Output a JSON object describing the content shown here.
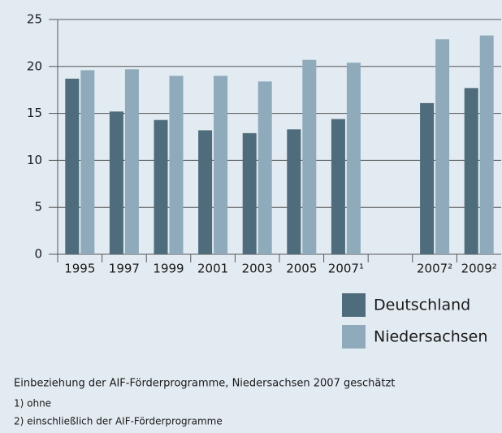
{
  "chart_data": {
    "type": "bar",
    "categories": [
      "1995",
      "1997",
      "1999",
      "2001",
      "2003",
      "2005",
      "2007¹",
      null,
      "2007²",
      "2009²"
    ],
    "series": [
      {
        "name": "Deutschland",
        "color": "#4e6c7b",
        "values": [
          18.7,
          15.2,
          14.3,
          13.2,
          12.9,
          13.3,
          14.4,
          null,
          16.1,
          17.7
        ]
      },
      {
        "name": "Niedersachsen",
        "color": "#8eaabb",
        "values": [
          19.6,
          19.7,
          19.0,
          19.0,
          18.4,
          20.7,
          20.4,
          null,
          22.9,
          23.3
        ]
      }
    ],
    "ylim": [
      0,
      25
    ],
    "yticks": [
      0,
      5,
      10,
      15,
      20,
      25
    ],
    "grid": true,
    "legend": "bottom-right",
    "notes": [
      "Einbeziehung der AIF-Förderprogramme, Niedersachsen 2007 geschätzt",
      "1) ohne",
      "2) einschließlich der AIF-Förderprogramme"
    ]
  }
}
